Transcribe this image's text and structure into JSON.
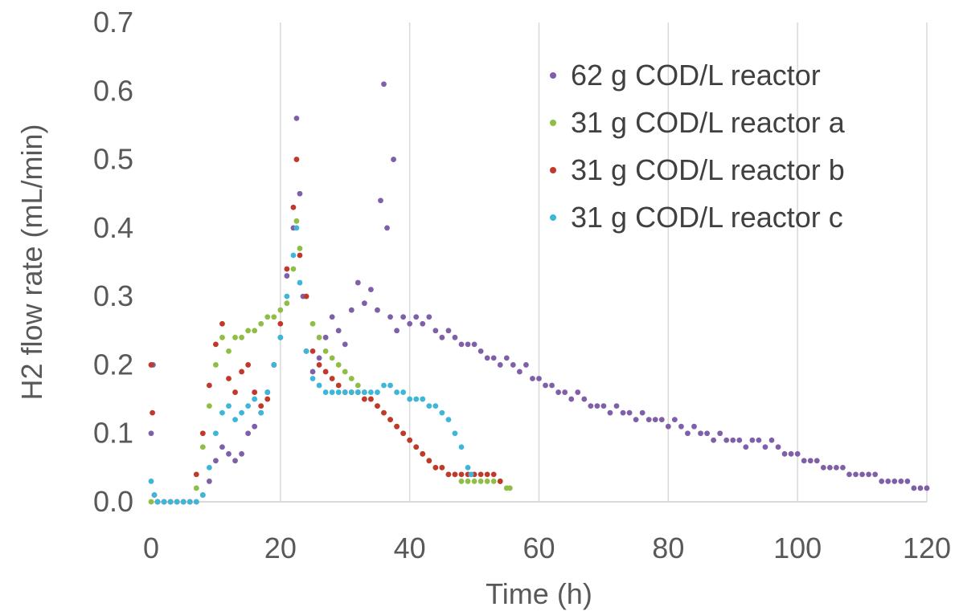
{
  "chart_data": {
    "type": "scatter",
    "title": "",
    "xlabel": "Time (h)",
    "ylabel": "H2 flow rate (mL/min)",
    "xlim": [
      0,
      120
    ],
    "ylim": [
      0,
      0.7
    ],
    "x_ticks": [
      0,
      20,
      40,
      60,
      80,
      100,
      120
    ],
    "y_ticks": [
      "0.0",
      "0.1",
      "0.2",
      "0.3",
      "0.4",
      "0.5",
      "0.6",
      "0.7"
    ],
    "grid": "vertical",
    "legend_position": "top-right",
    "series": [
      {
        "name": "62 g COD/L reactor",
        "color": "#7f5fa8",
        "points": [
          [
            0,
            0.1
          ],
          [
            0.3,
            0.2
          ],
          [
            1,
            0
          ],
          [
            2,
            0
          ],
          [
            3,
            0
          ],
          [
            4,
            0
          ],
          [
            5,
            0
          ],
          [
            6,
            0
          ],
          [
            7,
            0
          ],
          [
            8,
            0.01
          ],
          [
            9,
            0.03
          ],
          [
            10,
            0.06
          ],
          [
            11,
            0.08
          ],
          [
            12,
            0.07
          ],
          [
            13,
            0.06
          ],
          [
            14,
            0.07
          ],
          [
            15,
            0.1
          ],
          [
            16,
            0.11
          ],
          [
            17,
            0.13
          ],
          [
            18,
            0.16
          ],
          [
            19,
            0.2
          ],
          [
            20,
            0.24
          ],
          [
            21,
            0.33
          ],
          [
            22,
            0.4
          ],
          [
            22.5,
            0.56
          ],
          [
            23,
            0.45
          ],
          [
            23.5,
            0.3
          ],
          [
            24,
            0.22
          ],
          [
            25,
            0.19
          ],
          [
            26,
            0.21
          ],
          [
            27,
            0.24
          ],
          [
            28,
            0.27
          ],
          [
            29,
            0.25
          ],
          [
            30,
            0.23
          ],
          [
            31,
            0.28
          ],
          [
            32,
            0.32
          ],
          [
            33,
            0.29
          ],
          [
            34,
            0.31
          ],
          [
            35,
            0.28
          ],
          [
            35.5,
            0.44
          ],
          [
            36,
            0.61
          ],
          [
            36.5,
            0.4
          ],
          [
            37,
            0.27
          ],
          [
            37.5,
            0.5
          ],
          [
            38,
            0.25
          ],
          [
            39,
            0.27
          ],
          [
            40,
            0.26
          ],
          [
            41,
            0.27
          ],
          [
            42,
            0.26
          ],
          [
            43,
            0.27
          ],
          [
            44,
            0.25
          ],
          [
            45,
            0.24
          ],
          [
            46,
            0.25
          ],
          [
            47,
            0.24
          ],
          [
            48,
            0.23
          ],
          [
            49,
            0.23
          ],
          [
            50,
            0.23
          ],
          [
            51,
            0.22
          ],
          [
            52,
            0.21
          ],
          [
            53,
            0.21
          ],
          [
            54,
            0.2
          ],
          [
            55,
            0.21
          ],
          [
            56,
            0.2
          ],
          [
            57,
            0.19
          ],
          [
            58,
            0.2
          ],
          [
            59,
            0.18
          ],
          [
            60,
            0.18
          ],
          [
            61,
            0.17
          ],
          [
            62,
            0.17
          ],
          [
            63,
            0.16
          ],
          [
            64,
            0.16
          ],
          [
            65,
            0.15
          ],
          [
            66,
            0.16
          ],
          [
            67,
            0.15
          ],
          [
            68,
            0.14
          ],
          [
            69,
            0.14
          ],
          [
            70,
            0.14
          ],
          [
            71,
            0.13
          ],
          [
            72,
            0.14
          ],
          [
            73,
            0.13
          ],
          [
            74,
            0.13
          ],
          [
            75,
            0.12
          ],
          [
            76,
            0.13
          ],
          [
            77,
            0.12
          ],
          [
            78,
            0.12
          ],
          [
            79,
            0.12
          ],
          [
            80,
            0.11
          ],
          [
            81,
            0.12
          ],
          [
            82,
            0.11
          ],
          [
            83,
            0.1
          ],
          [
            84,
            0.11
          ],
          [
            85,
            0.1
          ],
          [
            86,
            0.1
          ],
          [
            87,
            0.09
          ],
          [
            88,
            0.1
          ],
          [
            89,
            0.09
          ],
          [
            90,
            0.09
          ],
          [
            91,
            0.09
          ],
          [
            92,
            0.08
          ],
          [
            93,
            0.09
          ],
          [
            94,
            0.09
          ],
          [
            95,
            0.08
          ],
          [
            96,
            0.09
          ],
          [
            97,
            0.08
          ],
          [
            98,
            0.07
          ],
          [
            99,
            0.07
          ],
          [
            100,
            0.07
          ],
          [
            101,
            0.06
          ],
          [
            102,
            0.06
          ],
          [
            103,
            0.06
          ],
          [
            104,
            0.05
          ],
          [
            105,
            0.05
          ],
          [
            106,
            0.05
          ],
          [
            107,
            0.05
          ],
          [
            108,
            0.04
          ],
          [
            109,
            0.04
          ],
          [
            110,
            0.04
          ],
          [
            111,
            0.04
          ],
          [
            112,
            0.04
          ],
          [
            113,
            0.03
          ],
          [
            114,
            0.03
          ],
          [
            115,
            0.03
          ],
          [
            116,
            0.03
          ],
          [
            117,
            0.03
          ],
          [
            118,
            0.02
          ],
          [
            119,
            0.02
          ],
          [
            120,
            0.02
          ]
        ]
      },
      {
        "name": "31 g COD/L reactor a",
        "color": "#8fbe45",
        "points": [
          [
            0,
            0
          ],
          [
            1,
            0
          ],
          [
            2,
            0
          ],
          [
            3,
            0
          ],
          [
            4,
            0
          ],
          [
            5,
            0
          ],
          [
            6,
            0
          ],
          [
            7,
            0.02
          ],
          [
            8,
            0.08
          ],
          [
            9,
            0.14
          ],
          [
            10,
            0.2
          ],
          [
            11,
            0.24
          ],
          [
            12,
            0.22
          ],
          [
            13,
            0.24
          ],
          [
            14,
            0.24
          ],
          [
            15,
            0.25
          ],
          [
            16,
            0.25
          ],
          [
            17,
            0.26
          ],
          [
            18,
            0.27
          ],
          [
            19,
            0.27
          ],
          [
            20,
            0.28
          ],
          [
            21,
            0.29
          ],
          [
            22,
            0.34
          ],
          [
            22.5,
            0.41
          ],
          [
            23,
            0.37
          ],
          [
            24,
            0.3
          ],
          [
            25,
            0.26
          ],
          [
            26,
            0.24
          ],
          [
            27,
            0.22
          ],
          [
            28,
            0.21
          ],
          [
            29,
            0.2
          ],
          [
            30,
            0.19
          ],
          [
            31,
            0.18
          ],
          [
            32,
            0.17
          ],
          [
            33,
            0.16
          ],
          [
            34,
            0.15
          ],
          [
            35,
            0.14
          ],
          [
            36,
            0.13
          ],
          [
            37,
            0.12
          ],
          [
            38,
            0.11
          ],
          [
            39,
            0.1
          ],
          [
            40,
            0.09
          ],
          [
            41,
            0.08
          ],
          [
            42,
            0.07
          ],
          [
            43,
            0.06
          ],
          [
            44,
            0.05
          ],
          [
            45,
            0.05
          ],
          [
            46,
            0.04
          ],
          [
            47,
            0.04
          ],
          [
            48,
            0.03
          ],
          [
            49,
            0.03
          ],
          [
            50,
            0.03
          ],
          [
            51,
            0.03
          ],
          [
            52,
            0.03
          ],
          [
            53,
            0.03
          ],
          [
            54,
            0.03
          ],
          [
            55,
            0.02
          ],
          [
            55.5,
            0.02
          ]
        ]
      },
      {
        "name": "31 g COD/L reactor b",
        "color": "#c0392b",
        "points": [
          [
            0,
            0.2
          ],
          [
            0.2,
            0.13
          ],
          [
            0.5,
            0.01
          ],
          [
            1,
            0
          ],
          [
            2,
            0
          ],
          [
            3,
            0
          ],
          [
            4,
            0
          ],
          [
            5,
            0
          ],
          [
            6,
            0
          ],
          [
            7,
            0.04
          ],
          [
            8,
            0.1
          ],
          [
            9,
            0.17
          ],
          [
            10,
            0.23
          ],
          [
            11,
            0.26
          ],
          [
            12,
            0.18
          ],
          [
            13,
            0.16
          ],
          [
            14,
            0.19
          ],
          [
            15,
            0.2
          ],
          [
            16,
            0.16
          ],
          [
            17,
            0.14
          ],
          [
            18,
            0.15
          ],
          [
            19,
            0.2
          ],
          [
            20,
            0.26
          ],
          [
            21,
            0.34
          ],
          [
            22,
            0.43
          ],
          [
            22.5,
            0.5
          ],
          [
            23,
            0.36
          ],
          [
            24,
            0.3
          ],
          [
            25,
            0.22
          ],
          [
            26,
            0.2
          ],
          [
            27,
            0.19
          ],
          [
            28,
            0.18
          ],
          [
            29,
            0.17
          ],
          [
            30,
            0.16
          ],
          [
            31,
            0.16
          ],
          [
            32,
            0.16
          ],
          [
            33,
            0.15
          ],
          [
            34,
            0.15
          ],
          [
            35,
            0.14
          ],
          [
            36,
            0.13
          ],
          [
            37,
            0.12
          ],
          [
            38,
            0.11
          ],
          [
            39,
            0.1
          ],
          [
            40,
            0.09
          ],
          [
            41,
            0.08
          ],
          [
            42,
            0.07
          ],
          [
            43,
            0.06
          ],
          [
            44,
            0.05
          ],
          [
            45,
            0.05
          ],
          [
            46,
            0.04
          ],
          [
            47,
            0.04
          ],
          [
            48,
            0.04
          ],
          [
            49,
            0.04
          ],
          [
            50,
            0.04
          ],
          [
            51,
            0.04
          ],
          [
            52,
            0.04
          ],
          [
            53,
            0.04
          ],
          [
            54,
            0.03
          ]
        ]
      },
      {
        "name": "31 g COD/L reactor c",
        "color": "#3eb6d8",
        "points": [
          [
            0,
            0.03
          ],
          [
            0.5,
            0.01
          ],
          [
            1,
            0
          ],
          [
            2,
            0
          ],
          [
            3,
            0
          ],
          [
            4,
            0
          ],
          [
            5,
            0
          ],
          [
            6,
            0
          ],
          [
            7,
            0
          ],
          [
            8,
            0.01
          ],
          [
            9,
            0.05
          ],
          [
            10,
            0.1
          ],
          [
            11,
            0.13
          ],
          [
            12,
            0.14
          ],
          [
            13,
            0.12
          ],
          [
            14,
            0.13
          ],
          [
            15,
            0.14
          ],
          [
            16,
            0.15
          ],
          [
            17,
            0.13
          ],
          [
            18,
            0.16
          ],
          [
            19,
            0.2
          ],
          [
            20,
            0.24
          ],
          [
            21,
            0.3
          ],
          [
            22,
            0.36
          ],
          [
            22.5,
            0.4
          ],
          [
            23,
            0.32
          ],
          [
            24,
            0.22
          ],
          [
            25,
            0.18
          ],
          [
            26,
            0.17
          ],
          [
            27,
            0.16
          ],
          [
            28,
            0.16
          ],
          [
            29,
            0.16
          ],
          [
            30,
            0.16
          ],
          [
            31,
            0.16
          ],
          [
            32,
            0.16
          ],
          [
            33,
            0.16
          ],
          [
            34,
            0.16
          ],
          [
            35,
            0.16
          ],
          [
            36,
            0.17
          ],
          [
            37,
            0.17
          ],
          [
            38,
            0.16
          ],
          [
            39,
            0.16
          ],
          [
            40,
            0.15
          ],
          [
            41,
            0.15
          ],
          [
            42,
            0.15
          ],
          [
            43,
            0.14
          ],
          [
            44,
            0.14
          ],
          [
            45,
            0.13
          ],
          [
            46,
            0.12
          ],
          [
            47,
            0.1
          ],
          [
            48,
            0.08
          ],
          [
            49,
            0.05
          ],
          [
            49.5,
            0.04
          ]
        ]
      }
    ]
  }
}
